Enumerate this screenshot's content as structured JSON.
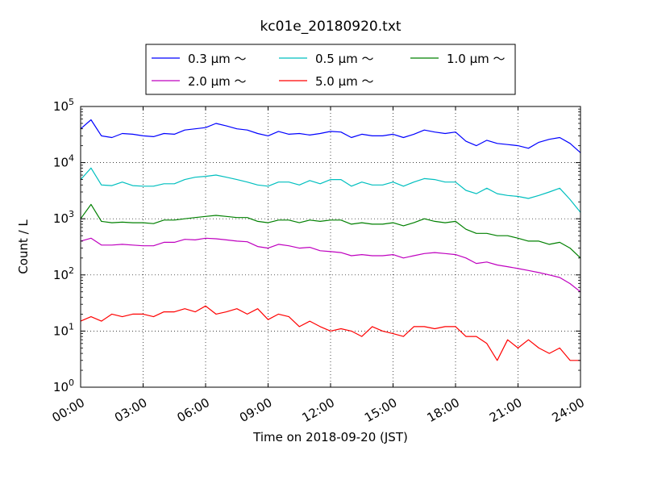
{
  "chart_data": {
    "type": "line",
    "title": "kc01e_20180920.txt",
    "xlabel": "Time on 2018-09-20 (JST)",
    "ylabel": "Count / L",
    "y_scale": "log",
    "ylim": [
      1,
      100000
    ],
    "xlim": [
      "00:00",
      "24:00"
    ],
    "x_ticks": [
      "00:00",
      "03:00",
      "06:00",
      "09:00",
      "12:00",
      "15:00",
      "18:00",
      "21:00",
      "24:00"
    ],
    "y_ticks": [
      {
        "base": "10",
        "exp": "0"
      },
      {
        "base": "10",
        "exp": "1"
      },
      {
        "base": "10",
        "exp": "2"
      },
      {
        "base": "10",
        "exp": "3"
      },
      {
        "base": "10",
        "exp": "4"
      },
      {
        "base": "10",
        "exp": "5"
      }
    ],
    "grid": true,
    "legend_position": "top",
    "x": [
      "00:00",
      "00:30",
      "01:00",
      "01:30",
      "02:00",
      "02:30",
      "03:00",
      "03:30",
      "04:00",
      "04:30",
      "05:00",
      "05:30",
      "06:00",
      "06:30",
      "07:00",
      "07:30",
      "08:00",
      "08:30",
      "09:00",
      "09:30",
      "10:00",
      "10:30",
      "11:00",
      "11:30",
      "12:00",
      "12:30",
      "13:00",
      "13:30",
      "14:00",
      "14:30",
      "15:00",
      "15:30",
      "16:00",
      "16:30",
      "17:00",
      "17:30",
      "18:00",
      "18:30",
      "19:00",
      "19:30",
      "20:00",
      "20:30",
      "21:00",
      "21:30",
      "22:00",
      "22:30",
      "23:00",
      "23:30",
      "24:00"
    ],
    "series": [
      {
        "name": "0.3 μm ～",
        "color": "#0000ff",
        "values": [
          40000,
          58000,
          30000,
          28000,
          33000,
          32000,
          30000,
          29000,
          33000,
          32000,
          38000,
          40000,
          42000,
          50000,
          45000,
          40000,
          38000,
          33000,
          30000,
          36000,
          32000,
          33000,
          31000,
          33000,
          36000,
          35000,
          28000,
          32000,
          30000,
          30000,
          32000,
          28000,
          32000,
          38000,
          35000,
          33000,
          35000,
          24000,
          20000,
          25000,
          22000,
          21000,
          20000,
          18000,
          23000,
          26000,
          28000,
          22000,
          15000
        ]
      },
      {
        "name": "0.5 μm ～",
        "color": "#00bfbf",
        "values": [
          5000,
          8000,
          4000,
          3900,
          4500,
          3900,
          3800,
          3800,
          4200,
          4200,
          5000,
          5500,
          5700,
          6000,
          5500,
          5000,
          4500,
          4000,
          3800,
          4500,
          4500,
          4000,
          4800,
          4200,
          5000,
          5000,
          3800,
          4500,
          4000,
          4000,
          4500,
          3800,
          4500,
          5200,
          5000,
          4500,
          4500,
          3200,
          2800,
          3500,
          2800,
          2600,
          2500,
          2300,
          2600,
          3000,
          3500,
          2200,
          1300
        ]
      },
      {
        "name": "1.0 μm ～",
        "color": "#008000",
        "values": [
          1000,
          1800,
          900,
          850,
          870,
          850,
          850,
          820,
          950,
          950,
          1000,
          1050,
          1100,
          1150,
          1100,
          1050,
          1050,
          900,
          850,
          950,
          950,
          850,
          950,
          900,
          950,
          950,
          800,
          850,
          800,
          800,
          850,
          750,
          850,
          1000,
          900,
          850,
          900,
          650,
          550,
          550,
          500,
          500,
          450,
          400,
          400,
          350,
          380,
          300,
          200
        ]
      },
      {
        "name": "2.0 μm ～",
        "color": "#bf00bf",
        "values": [
          400,
          450,
          340,
          340,
          350,
          340,
          330,
          330,
          380,
          380,
          430,
          420,
          450,
          440,
          420,
          400,
          390,
          320,
          300,
          350,
          330,
          300,
          310,
          270,
          260,
          250,
          220,
          230,
          220,
          220,
          230,
          200,
          220,
          240,
          250,
          240,
          230,
          200,
          160,
          170,
          150,
          140,
          130,
          120,
          110,
          100,
          90,
          70,
          50
        ]
      },
      {
        "name": "5.0 μm ～",
        "color": "#ff0000",
        "values": [
          15,
          18,
          15,
          20,
          18,
          20,
          20,
          18,
          22,
          22,
          25,
          22,
          28,
          20,
          22,
          25,
          20,
          25,
          16,
          20,
          18,
          12,
          15,
          12,
          10,
          11,
          10,
          8,
          12,
          10,
          9,
          8,
          12,
          12,
          11,
          12,
          12,
          8,
          8,
          6,
          3,
          7,
          5,
          7,
          5,
          4,
          5,
          3,
          3
        ]
      }
    ]
  }
}
